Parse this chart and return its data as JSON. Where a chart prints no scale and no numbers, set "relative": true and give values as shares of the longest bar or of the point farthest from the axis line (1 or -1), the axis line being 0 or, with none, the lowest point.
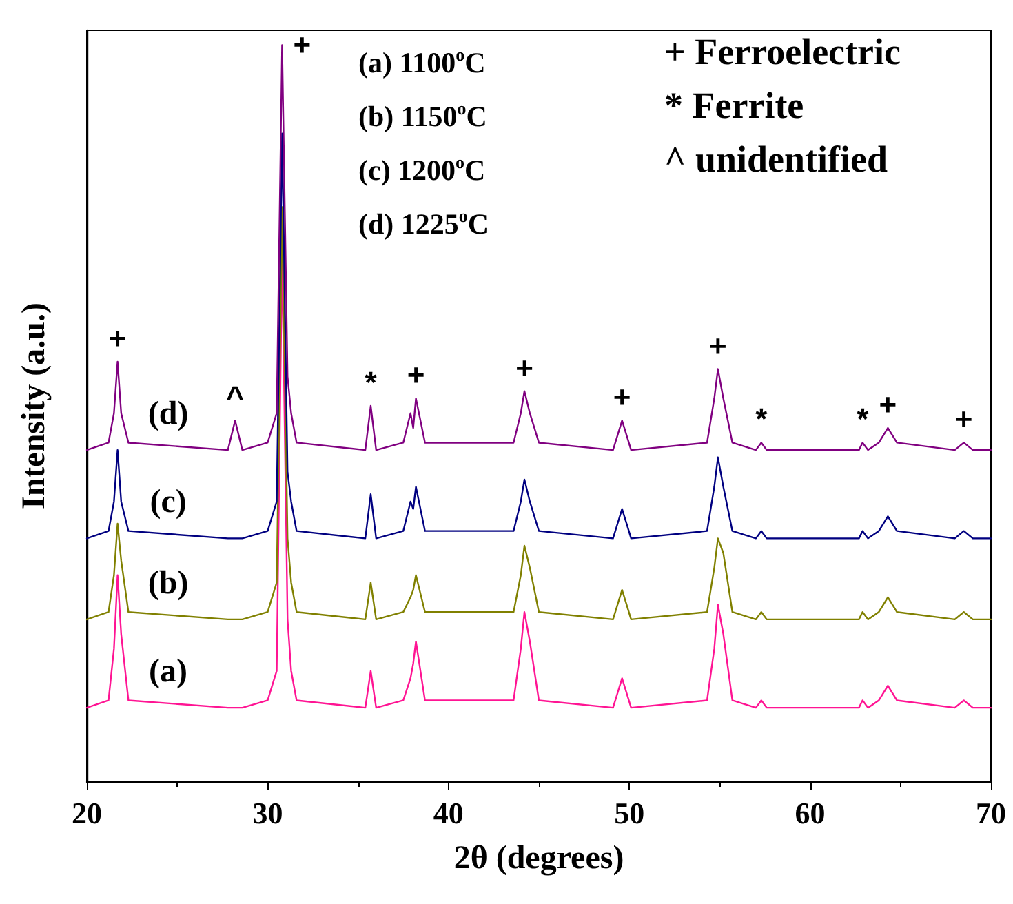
{
  "chart_data": {
    "type": "line",
    "relative": true,
    "xlabel": "2θ (degrees)",
    "ylabel": "Intensity (a.u.)",
    "xlim": [
      20,
      70
    ],
    "xticks": [
      20,
      30,
      40,
      50,
      60,
      70
    ],
    "grid": false,
    "legend": false,
    "marker": "none",
    "line_style": "solid",
    "x": [
      20,
      21.2,
      21.5,
      21.7,
      21.9,
      22.3,
      27.8,
      28.2,
      28.6,
      30.0,
      30.5,
      30.8,
      31.1,
      31.3,
      31.6,
      35.4,
      35.7,
      36.0,
      37.5,
      37.9,
      38.05,
      38.2,
      38.7,
      43.6,
      44.0,
      44.2,
      44.5,
      45.0,
      49.1,
      49.6,
      50.1,
      54.3,
      54.7,
      54.9,
      55.2,
      55.7,
      57.0,
      57.3,
      57.6,
      62.7,
      62.9,
      63.2,
      63.8,
      64.3,
      64.8,
      68.0,
      68.5,
      69.0,
      70
    ],
    "series": [
      {
        "name": "(a)",
        "color": "#ff1493",
        "values": [
          0.1,
          0.11,
          0.18,
          0.28,
          0.2,
          0.11,
          0.1,
          0.1,
          0.1,
          0.11,
          0.15,
          0.72,
          0.22,
          0.15,
          0.11,
          0.1,
          0.15,
          0.1,
          0.11,
          0.14,
          0.16,
          0.19,
          0.11,
          0.11,
          0.18,
          0.23,
          0.19,
          0.11,
          0.1,
          0.14,
          0.1,
          0.11,
          0.18,
          0.24,
          0.2,
          0.11,
          0.1,
          0.11,
          0.1,
          0.1,
          0.11,
          0.1,
          0.11,
          0.13,
          0.11,
          0.1,
          0.11,
          0.1,
          0.1
        ]
      },
      {
        "name": "(b)",
        "color": "#808000",
        "values": [
          0.22,
          0.23,
          0.28,
          0.35,
          0.3,
          0.23,
          0.22,
          0.22,
          0.22,
          0.23,
          0.27,
          0.78,
          0.33,
          0.27,
          0.23,
          0.22,
          0.27,
          0.22,
          0.23,
          0.25,
          0.26,
          0.28,
          0.23,
          0.23,
          0.28,
          0.32,
          0.29,
          0.23,
          0.22,
          0.26,
          0.22,
          0.23,
          0.29,
          0.33,
          0.31,
          0.23,
          0.22,
          0.23,
          0.22,
          0.22,
          0.23,
          0.22,
          0.23,
          0.25,
          0.23,
          0.22,
          0.23,
          0.22,
          0.22
        ]
      },
      {
        "name": "(c)",
        "color": "#000080",
        "values": [
          0.33,
          0.34,
          0.38,
          0.45,
          0.38,
          0.34,
          0.33,
          0.33,
          0.33,
          0.34,
          0.38,
          0.88,
          0.42,
          0.38,
          0.34,
          0.33,
          0.39,
          0.33,
          0.34,
          0.38,
          0.37,
          0.4,
          0.34,
          0.34,
          0.38,
          0.41,
          0.38,
          0.34,
          0.33,
          0.37,
          0.33,
          0.34,
          0.4,
          0.44,
          0.4,
          0.34,
          0.33,
          0.34,
          0.33,
          0.33,
          0.34,
          0.33,
          0.34,
          0.36,
          0.34,
          0.33,
          0.34,
          0.33,
          0.33
        ]
      },
      {
        "name": "(d)",
        "color": "#800080",
        "values": [
          0.45,
          0.46,
          0.5,
          0.57,
          0.5,
          0.46,
          0.45,
          0.49,
          0.45,
          0.46,
          0.5,
          1.0,
          0.55,
          0.5,
          0.46,
          0.45,
          0.51,
          0.45,
          0.46,
          0.5,
          0.48,
          0.52,
          0.46,
          0.46,
          0.5,
          0.53,
          0.5,
          0.46,
          0.45,
          0.49,
          0.45,
          0.46,
          0.52,
          0.56,
          0.52,
          0.46,
          0.45,
          0.46,
          0.45,
          0.45,
          0.46,
          0.45,
          0.46,
          0.48,
          0.46,
          0.45,
          0.46,
          0.45,
          0.45
        ]
      }
    ],
    "annotations": [
      "(a) 1100$^{o}$C",
      "(b) 1150$^{o}$C",
      "(c) 1200$^{o}$C",
      "(d) 1225$^{o}$C",
      "+ Ferroelectric",
      "* Ferrite",
      "^ unidentified",
      {
        "text": "+",
        "x": 21.7,
        "y": 0.57
      },
      {
        "text": "^",
        "x": 28.2,
        "y": 0.49
      },
      {
        "text": "+",
        "x": 30.8,
        "y": 1.0
      },
      {
        "text": "*",
        "x": 35.7,
        "y": 0.51
      },
      {
        "text": "+",
        "x": 38.2,
        "y": 0.52
      },
      {
        "text": "+",
        "x": 44.2,
        "y": 0.53
      },
      {
        "text": "+",
        "x": 49.6,
        "y": 0.49
      },
      {
        "text": "+",
        "x": 54.9,
        "y": 0.56
      },
      {
        "text": "*",
        "x": 57.3,
        "y": 0.46
      },
      {
        "text": "*",
        "x": 62.9,
        "y": 0.46
      },
      {
        "text": "+",
        "x": 64.3,
        "y": 0.48
      },
      {
        "text": "+",
        "x": 68.5,
        "y": 0.46
      }
    ]
  }
}
